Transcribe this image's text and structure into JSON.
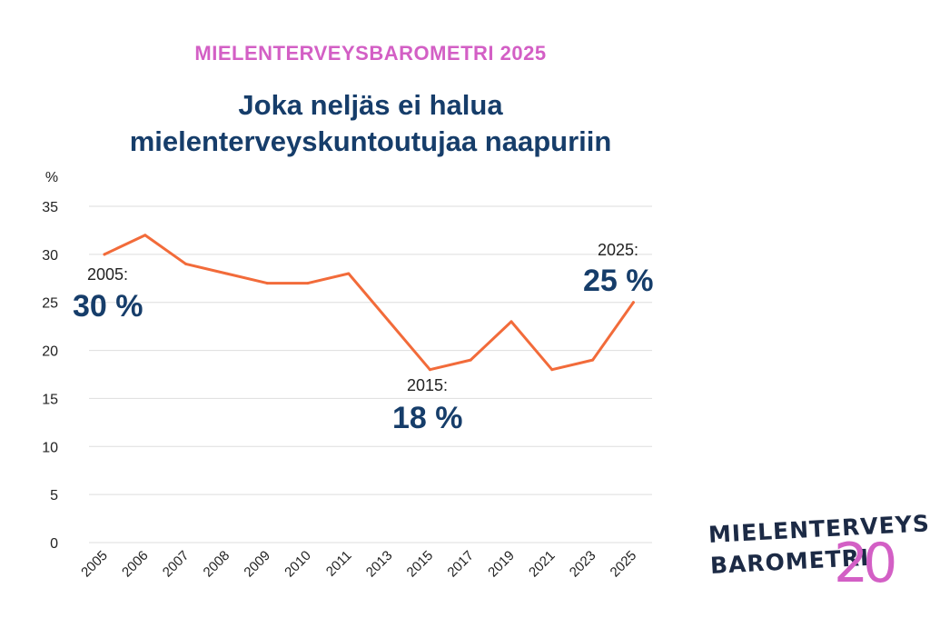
{
  "header": {
    "supertitle": "MIELENTERVEYSBAROMETRI 2025",
    "title_line1": "Joka neljäs ei halua",
    "title_line2": "mielenterveyskuntoutujaa naapuriin"
  },
  "colors": {
    "supertitle": "#d35fc5",
    "title": "#163d6a",
    "line": "#f26b3a",
    "grid": "#dedede",
    "axis_text": "#222222",
    "callout_value": "#163d6a",
    "logo_pink": "#d35fc5"
  },
  "chart_data": {
    "type": "line",
    "ylabel": "%",
    "ylim": [
      0,
      35
    ],
    "yticks": [
      0,
      5,
      10,
      15,
      20,
      25,
      30,
      35
    ],
    "categories": [
      "2005",
      "2006",
      "2007",
      "2008",
      "2009",
      "2010",
      "2011",
      "2013",
      "2015",
      "2017",
      "2019",
      "2021",
      "2023",
      "2025"
    ],
    "series": [
      {
        "values": [
          30,
          32,
          29,
          28,
          27,
          27,
          28,
          23,
          18,
          19,
          23,
          18,
          19,
          25
        ]
      }
    ],
    "grid": true,
    "annotations": [
      {
        "category": "2005",
        "label": "2005:",
        "value_text": "30 %"
      },
      {
        "category": "2015",
        "label": "2015:",
        "value_text": "18 %"
      },
      {
        "category": "2025",
        "label": "2025:",
        "value_text": "25 %"
      }
    ]
  },
  "logo": {
    "line1": "MIELENTERVEYS-",
    "line2": "BAROMETRI",
    "number": "20"
  }
}
